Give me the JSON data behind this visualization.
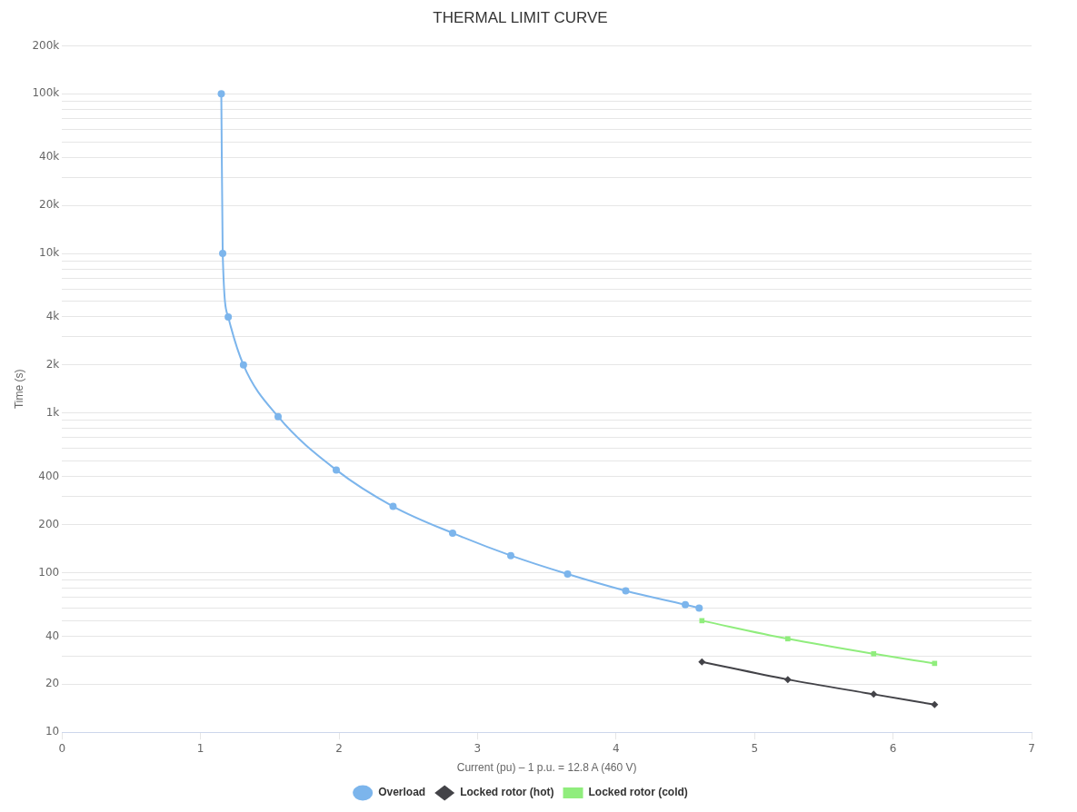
{
  "chart_data": {
    "type": "line",
    "title": "THERMAL LIMIT CURVE",
    "xlabel": "Current (pu) – 1 p.u. = 12.8 A (460 V)",
    "ylabel": "Time (s)",
    "log": "y",
    "grid": "y",
    "legend": "bottom",
    "line_style": "solid",
    "xlim": [
      0,
      7
    ],
    "xticks": [
      0,
      1,
      2,
      3,
      4,
      5,
      6,
      7
    ],
    "ylim": [
      10,
      200000
    ],
    "yticks": [
      10,
      20,
      {
        "value": 30,
        "label": null
      },
      40,
      {
        "value": 50,
        "label": null
      },
      {
        "value": 60,
        "label": null
      },
      {
        "value": 70,
        "label": null
      },
      {
        "value": 80,
        "label": null
      },
      {
        "value": 90,
        "label": null
      },
      {
        "value": 100,
        "label": "100"
      },
      {
        "value": 200,
        "label": "200"
      },
      {
        "value": 300,
        "label": null
      },
      {
        "value": 400,
        "label": "400"
      },
      {
        "value": 500,
        "label": null
      },
      {
        "value": 600,
        "label": null
      },
      {
        "value": 700,
        "label": null
      },
      {
        "value": 800,
        "label": null
      },
      {
        "value": 900,
        "label": null
      },
      {
        "value": 1000,
        "label": "1k"
      },
      {
        "value": 2000,
        "label": "2k"
      },
      {
        "value": 3000,
        "label": null
      },
      {
        "value": 4000,
        "label": "4k"
      },
      {
        "value": 5000,
        "label": null
      },
      {
        "value": 6000,
        "label": null
      },
      {
        "value": 7000,
        "label": null
      },
      {
        "value": 8000,
        "label": null
      },
      {
        "value": 9000,
        "label": null
      },
      {
        "value": 10000,
        "label": "10k"
      },
      {
        "value": 20000,
        "label": "20k"
      },
      {
        "value": 30000,
        "label": null
      },
      {
        "value": 40000,
        "label": "40k"
      },
      {
        "value": 50000,
        "label": null
      },
      {
        "value": 60000,
        "label": null
      },
      {
        "value": 70000,
        "label": null
      },
      {
        "value": 80000,
        "label": null
      },
      {
        "value": 90000,
        "label": null
      },
      {
        "value": 100000,
        "label": "100k"
      },
      {
        "value": 200000,
        "label": "200k"
      }
    ],
    "series": [
      {
        "name": "Overload",
        "color": "#7cb5ec",
        "marker": "circle",
        "x": [
          1.15,
          1.16,
          1.2,
          1.31,
          1.56,
          1.98,
          2.39,
          2.82,
          3.24,
          3.65,
          4.07,
          4.5,
          4.6
        ],
        "values": [
          100000,
          10000,
          4000,
          2000,
          950,
          440,
          260,
          177,
          128,
          98,
          77,
          63,
          60
        ]
      },
      {
        "name": "Locked rotor (hot)",
        "color": "#434348",
        "marker": "diamond",
        "x": [
          4.62,
          5.24,
          5.86,
          6.3
        ],
        "values": [
          27.6,
          21.4,
          17.3,
          14.9
        ]
      },
      {
        "name": "Locked rotor (cold)",
        "color": "#90ed7d",
        "marker": "square",
        "x": [
          4.62,
          5.24,
          5.86,
          6.3
        ],
        "values": [
          50,
          38.5,
          31,
          27
        ]
      }
    ]
  }
}
